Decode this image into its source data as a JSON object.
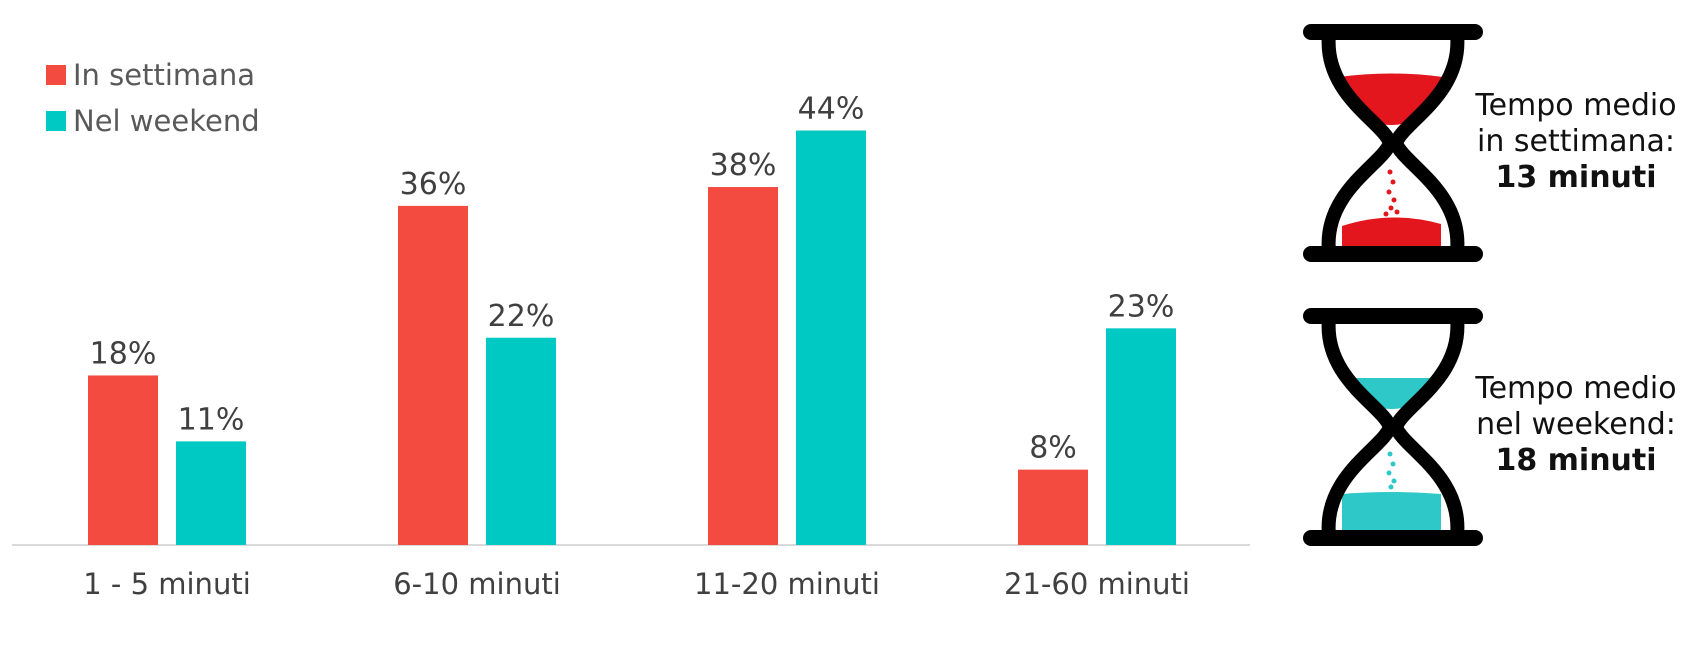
{
  "chart_data": {
    "type": "bar",
    "categories": [
      "1 - 5 minuti",
      "6-10 minuti",
      "11-20 minuti",
      "21-60 minuti"
    ],
    "series": [
      {
        "name": "In settimana",
        "values": [
          18,
          36,
          38,
          8
        ],
        "labels": [
          "18%",
          "36%",
          "38%",
          "8%"
        ],
        "color": "#F44B41"
      },
      {
        "name": "Nel weekend",
        "values": [
          11,
          22,
          44,
          23
        ],
        "labels": [
          "11%",
          "22%",
          "44%",
          "23%"
        ],
        "color": "#00C9C3"
      }
    ],
    "ylim": [
      0,
      44
    ],
    "grid": false,
    "legend_position": "top-left",
    "axis_color": "#D9D9D9",
    "label_color": "#404040",
    "tick_color": "#404040"
  },
  "sidebar": {
    "weekday": {
      "line1": "Tempo medio",
      "line2": "in settimana:",
      "value": "13 minuti",
      "sand_color": "#E4161D"
    },
    "weekend": {
      "line1": "Tempo medio",
      "line2": "nel weekend:",
      "value": "18 minuti",
      "sand_color": "#2EC8C8"
    }
  }
}
